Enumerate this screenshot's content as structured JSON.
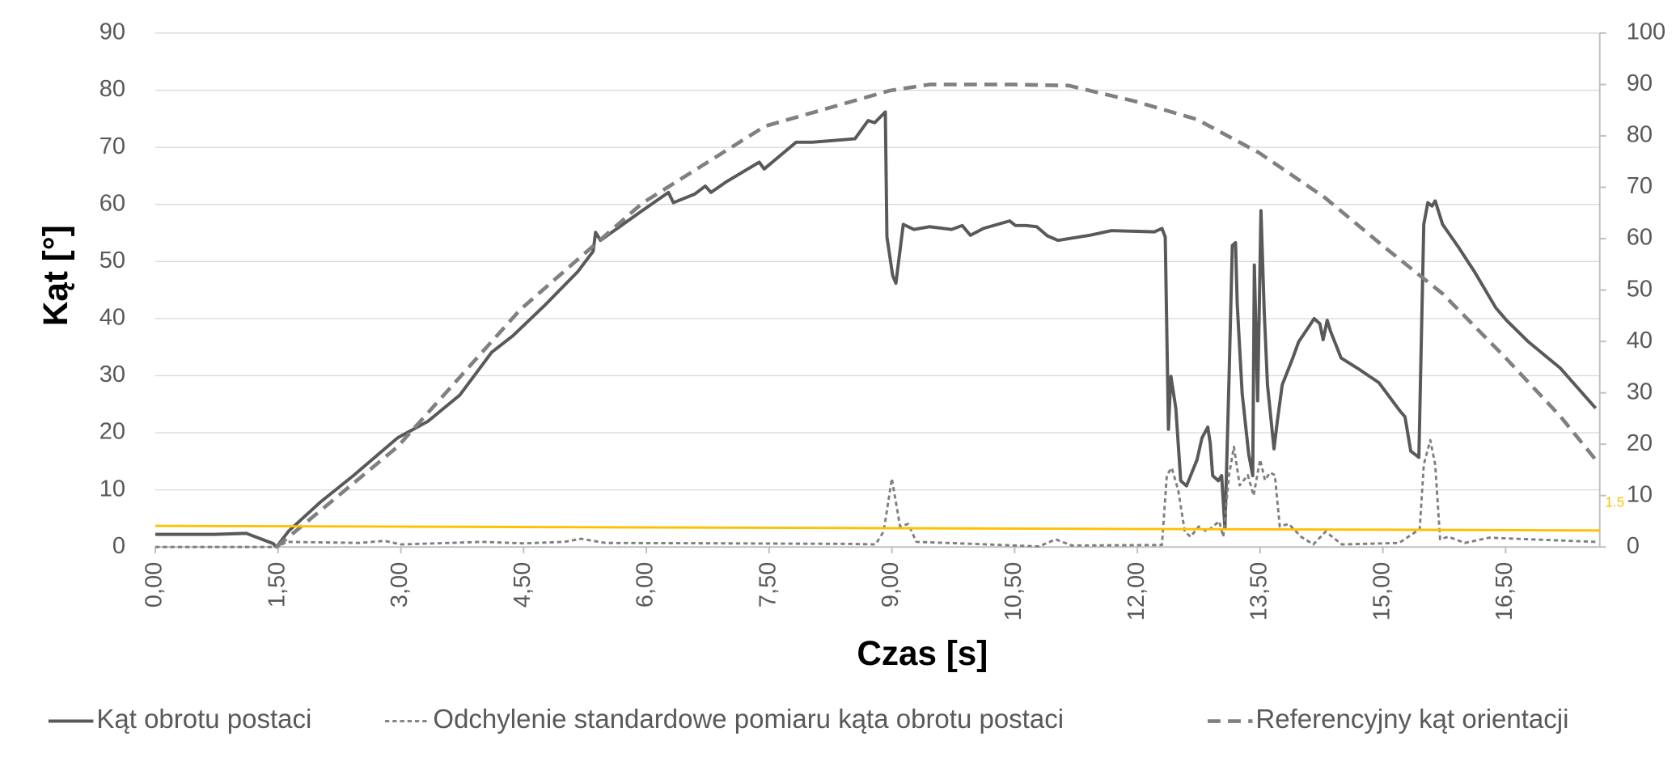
{
  "chart_data": {
    "type": "line",
    "x_label": "Czas [s]",
    "y_label": "Kąt [°]",
    "xlim": [
      0,
      17.65
    ],
    "xticks": [
      {
        "value": 0,
        "label": "0,00"
      },
      {
        "value": 1.5,
        "label": "1,50"
      },
      {
        "value": 3,
        "label": "3,00"
      },
      {
        "value": 4.5,
        "label": "4,50"
      },
      {
        "value": 6,
        "label": "6,00"
      },
      {
        "value": 7.5,
        "label": "7,50"
      },
      {
        "value": 9,
        "label": "9,00"
      },
      {
        "value": 10.5,
        "label": "10,50"
      },
      {
        "value": 12,
        "label": "12,00"
      },
      {
        "value": 13.5,
        "label": "13,50"
      },
      {
        "value": 15,
        "label": "15,00"
      },
      {
        "value": 16.5,
        "label": "16,50"
      }
    ],
    "ylim": [
      0,
      90
    ],
    "yticks": [
      0,
      10,
      20,
      30,
      40,
      50,
      60,
      70,
      80,
      90
    ],
    "y2lim": [
      0,
      100
    ],
    "y2ticks": [
      0,
      10,
      20,
      30,
      40,
      50,
      60,
      70,
      80,
      90,
      100
    ],
    "grid": true,
    "legend": "bottom",
    "series": [
      {
        "name": "Kąt obrotu postaci",
        "color": "#595959",
        "line_style": "solid",
        "x": [
          0,
          0.72,
          1.11,
          1.44,
          1.48,
          1.63,
          2.02,
          2.42,
          2.96,
          3.33,
          3.72,
          4.11,
          4.37,
          4.77,
          5.16,
          5.35,
          5.38,
          5.44,
          5.94,
          6.27,
          6.33,
          6.59,
          6.72,
          6.79,
          6.98,
          7.38,
          7.44,
          7.83,
          8.03,
          8.55,
          8.71,
          8.79,
          8.92,
          8.94,
          9.01,
          9.05,
          9.14,
          9.27,
          9.46,
          9.73,
          9.86,
          9.96,
          10.12,
          10.44,
          10.51,
          10.64,
          10.77,
          10.9,
          11.03,
          11.42,
          11.68,
          12.21,
          12.3,
          12.34,
          12.38,
          12.41,
          12.47,
          12.53,
          12.6,
          12.73,
          12.79,
          12.86,
          12.89,
          12.92,
          12.99,
          13.03,
          13.07,
          13.12,
          13.16,
          13.2,
          13.22,
          13.28,
          13.36,
          13.41,
          13.43,
          13.47,
          13.51,
          13.55,
          13.59,
          13.67,
          13.71,
          13.77,
          13.9,
          13.97,
          14.03,
          14.1,
          14.16,
          14.23,
          14.27,
          14.32,
          14.36,
          14.49,
          14.69,
          14.95,
          15.21,
          15.27,
          15.34,
          15.44,
          15.5,
          15.55,
          15.6,
          15.64,
          15.73,
          15.93,
          16.12,
          16.38,
          16.51,
          16.78,
          17.17,
          17.6
        ],
        "values": [
          2.2,
          2.2,
          2.4,
          0.6,
          0,
          2.8,
          7.9,
          12.5,
          19.1,
          22,
          26.6,
          34.1,
          37,
          42.5,
          48.2,
          51.8,
          55.1,
          53.7,
          58.8,
          62.1,
          60.3,
          61.8,
          63.2,
          62.1,
          64,
          67.4,
          66.2,
          70.9,
          70.9,
          71.5,
          74.7,
          74.3,
          76.2,
          54.3,
          47.5,
          46.2,
          56.5,
          55.6,
          56.1,
          55.6,
          56.3,
          54.6,
          55.8,
          57.1,
          56.3,
          56.3,
          56.1,
          54.5,
          53.7,
          54.6,
          55.4,
          55.2,
          55.8,
          54.3,
          20.6,
          29.9,
          24.3,
          11.6,
          10.7,
          15.3,
          19.1,
          21,
          18.2,
          12.5,
          11.6,
          12.5,
          3.2,
          29.4,
          52.8,
          53.3,
          42.5,
          26.9,
          16.3,
          12.5,
          49.4,
          25.6,
          58.9,
          41.5,
          28.4,
          17.2,
          22,
          28.4,
          33.1,
          35.9,
          37.2,
          38.7,
          40,
          39.1,
          36.3,
          39.7,
          37.8,
          33.1,
          31.3,
          28.8,
          23.8,
          22.8,
          16.8,
          15.7,
          56.5,
          60.3,
          59.7,
          60.6,
          56.5,
          52.4,
          48.2,
          41.9,
          39.7,
          35.9,
          31.3,
          24.3
        ]
      },
      {
        "name": "Odchylenie standardowe pomiaru kąta obrotu postaci",
        "color": "#7f7f7f",
        "line_style": "dotted",
        "axis": "y2",
        "x": [
          0,
          1.5,
          1.6,
          2.5,
          2.8,
          3,
          4,
          4.5,
          5,
          5.2,
          5.5,
          7,
          8.5,
          8.8,
          8.9,
          9,
          9.1,
          9.2,
          9.3,
          10,
          10.8,
          11,
          11.2,
          12.3,
          12.36,
          12.42,
          12.5,
          12.58,
          12.65,
          12.75,
          12.85,
          13,
          13.05,
          13.12,
          13.18,
          13.25,
          13.35,
          13.42,
          13.5,
          13.56,
          13.62,
          13.68,
          13.74,
          13.85,
          14,
          14.15,
          14.3,
          14.5,
          15.2,
          15.45,
          15.5,
          15.58,
          15.64,
          15.7,
          15.8,
          16,
          16.3,
          17.6
        ],
        "values": [
          0,
          0,
          1,
          0.8,
          1.2,
          0.5,
          1,
          0.7,
          1,
          1.6,
          0.8,
          0.7,
          0.6,
          0.5,
          3,
          13.3,
          4,
          4.5,
          1,
          0.6,
          0.1,
          1.5,
          0.3,
          0.4,
          14,
          15.4,
          11,
          3,
          2,
          4,
          3,
          5,
          2,
          14,
          19.5,
          12,
          14,
          10,
          17,
          13,
          14.5,
          14,
          4,
          4.5,
          2,
          0.5,
          3,
          0.5,
          0.8,
          3.5,
          16,
          20.8,
          16,
          1.5,
          2,
          0.8,
          1.8,
          1
        ]
      },
      {
        "name": "Referencyjny kąt orientacji",
        "color": "#808080",
        "line_style": "dashed",
        "axis": "y2",
        "x": [
          1.48,
          2.96,
          4.46,
          5.95,
          7.45,
          8.97,
          9.46,
          10.47,
          11.16,
          11.98,
          12.73,
          13.49,
          14.29,
          15,
          15.73,
          16.5,
          17.17,
          17.62
        ],
        "values": [
          0,
          19.5,
          46.2,
          66.9,
          81.9,
          88.8,
          90,
          90,
          89.8,
          86.7,
          83.2,
          76.7,
          68,
          58.6,
          49.3,
          36.8,
          25.4,
          16.6
        ]
      }
    ],
    "trendline": {
      "label": "1.5",
      "color": "#ffc000",
      "x": [
        0,
        17.65
      ],
      "values": [
        3.7,
        2.9
      ]
    }
  }
}
